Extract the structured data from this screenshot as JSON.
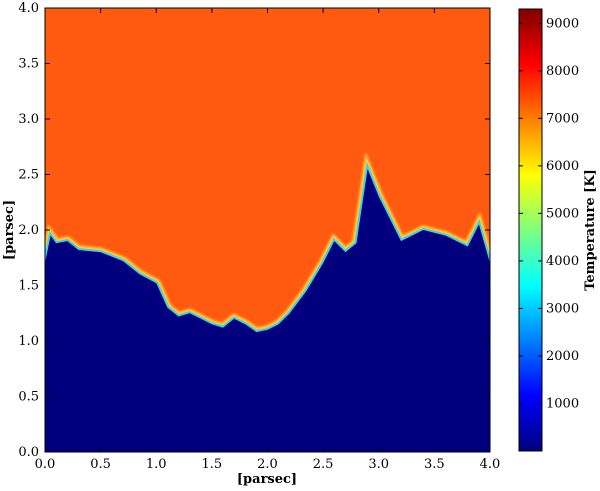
{
  "chart_data": {
    "type": "heatmap",
    "xlabel": "[parsec]",
    "ylabel": "[parsec]",
    "xlim": [
      0.0,
      4.0
    ],
    "ylim": [
      0.0,
      4.0
    ],
    "xticks": [
      "0.0",
      "0.5",
      "1.0",
      "1.5",
      "2.0",
      "2.5",
      "3.0",
      "3.5",
      "4.0"
    ],
    "yticks": [
      "0.0",
      "0.5",
      "1.0",
      "1.5",
      "2.0",
      "2.5",
      "3.0",
      "3.5",
      "4.0"
    ],
    "colorbar": {
      "label": "Temperature [K]",
      "range": [
        0,
        9300
      ],
      "ticks": [
        "1000",
        "2000",
        "3000",
        "4000",
        "5000",
        "6000",
        "7000",
        "8000",
        "9000"
      ],
      "colormap": "jet",
      "colormap_stops": [
        "#00007f",
        "#0000ff",
        "#007fff",
        "#00ffff",
        "#7fff7f",
        "#ffff00",
        "#ff7f00",
        "#ff0000",
        "#7f0000"
      ]
    },
    "regions": {
      "hot_gas_temperature_K": 8000,
      "cold_gas_temperature_K": 0,
      "hot_color": "#ff5a10",
      "cold_color": "#00007f"
    },
    "boundary_profile": {
      "x": [
        0.0,
        0.05,
        0.1,
        0.2,
        0.3,
        0.5,
        0.7,
        0.85,
        1.0,
        1.1,
        1.2,
        1.3,
        1.4,
        1.5,
        1.6,
        1.7,
        1.8,
        1.9,
        2.0,
        2.1,
        2.2,
        2.35,
        2.5,
        2.6,
        2.7,
        2.8,
        2.9,
        3.0,
        3.2,
        3.4,
        3.6,
        3.8,
        3.9,
        4.0
      ],
      "y": [
        1.7,
        1.95,
        1.88,
        1.9,
        1.82,
        1.8,
        1.72,
        1.6,
        1.52,
        1.3,
        1.22,
        1.25,
        1.2,
        1.15,
        1.12,
        1.2,
        1.15,
        1.08,
        1.1,
        1.15,
        1.25,
        1.45,
        1.7,
        1.9,
        1.8,
        1.88,
        2.55,
        2.3,
        1.9,
        2.0,
        1.95,
        1.85,
        2.05,
        1.7
      ]
    }
  }
}
